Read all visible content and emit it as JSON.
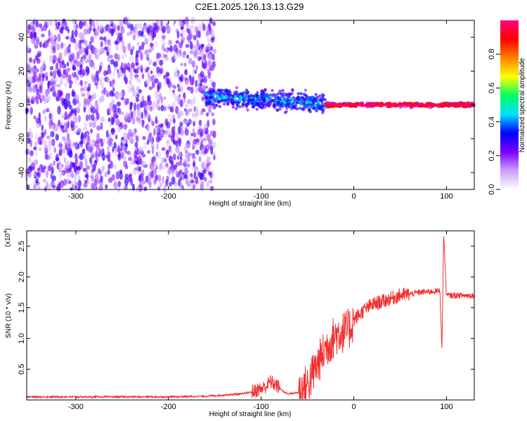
{
  "title": "C2E1.2025.126.13.13.G29",
  "chart_data": [
    {
      "type": "heatmap",
      "xlabel": "Height of straight line (km)",
      "ylabel": "Frequency (Hz)",
      "xlim": [
        -353,
        130
      ],
      "ylim": [
        -50,
        50
      ],
      "xticks": [
        -300,
        -200,
        -100,
        0,
        100
      ],
      "yticks": [
        -40,
        -20,
        0,
        20,
        40
      ],
      "colorbar": {
        "label": "Normalized spectral amplitude",
        "range": [
          0,
          1
        ],
        "ticks": [
          "0.0",
          "0.2",
          "0.4",
          "0.6",
          "0.8"
        ],
        "colors": [
          "#ffffff",
          "#c9a0ff",
          "#7a00ff",
          "#0000ff",
          "#00e0ff",
          "#00ff60",
          "#ffff00",
          "#ff8000",
          "#ff0000",
          "#ff0080"
        ]
      },
      "regions": [
        {
          "x_range": [
            -353,
            -150
          ],
          "freq_range": [
            -50,
            50
          ],
          "description_amplitude": [
            0.05,
            0.3
          ]
        },
        {
          "x_range": [
            -160,
            -30
          ],
          "freq_center": 5,
          "freq_halfwidth": 8,
          "description_amplitude": [
            0.2,
            0.55
          ]
        },
        {
          "x_range": [
            -30,
            130
          ],
          "freq_center": 0,
          "freq_halfwidth": 2,
          "description_amplitude": [
            0.8,
            1.0
          ]
        }
      ]
    },
    {
      "type": "line",
      "xlabel": "Height of straight line (km)",
      "ylabel": "SNR (10 * v/v)",
      "yscale_label": "(x10",
      "yscale_exp": "4",
      "xlim": [
        -353,
        130
      ],
      "ylim": [
        0,
        2.75
      ],
      "xticks": [
        -300,
        -200,
        -100,
        0,
        100
      ],
      "yticks": [
        0.5,
        1.0,
        1.5,
        2.0,
        2.5
      ],
      "color": "#f03030",
      "series": [
        {
          "x": [
            -353,
            -300,
            -250,
            -200,
            -160,
            -140,
            -120,
            -110,
            -100,
            -95,
            -90,
            -85,
            -80,
            -75,
            -70,
            -60,
            -50,
            -45,
            -40,
            -35,
            -30,
            -25,
            -20,
            -15,
            -10,
            -5,
            0,
            10,
            20,
            30,
            40,
            50,
            60,
            70,
            80,
            90,
            93,
            95,
            97,
            100,
            110,
            120,
            130
          ],
          "y": [
            0.05,
            0.05,
            0.05,
            0.05,
            0.06,
            0.08,
            0.1,
            0.13,
            0.18,
            0.22,
            0.3,
            0.25,
            0.2,
            0.12,
            0.1,
            0.12,
            0.25,
            0.4,
            0.55,
            0.7,
            0.85,
            0.95,
            1.05,
            1.1,
            1.1,
            1.15,
            1.3,
            1.45,
            1.55,
            1.6,
            1.65,
            1.7,
            1.72,
            1.75,
            1.76,
            1.77,
            1.78,
            0.8,
            2.7,
            1.7,
            1.7,
            1.7,
            1.7
          ]
        }
      ]
    }
  ]
}
